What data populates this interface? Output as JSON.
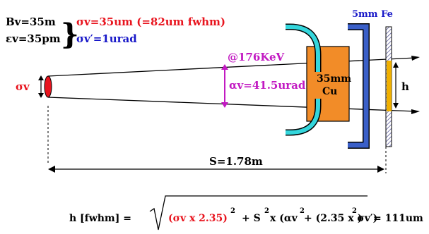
{
  "params": {
    "bv": "Bv=35m",
    "ev": "εv=35pm",
    "sigma_v": "σv=35um (=82um fwhm)",
    "sigma_vp": "σv′=1urad"
  },
  "energy": "@176KeV",
  "source_label": "σv",
  "divergence": "αv=41.5urad",
  "absorber": {
    "label_line1": "35mm",
    "label_line2": "Cu"
  },
  "fe_label": "5mm Fe",
  "h_label": "h",
  "distance": "S=1.78m",
  "formula": {
    "lhs": "h [fwhm]  =",
    "t1": "(σv x 2.35)",
    "t2": "+  S",
    "t3": "x (αv",
    "t4": "+ (2.35 x σv′)",
    "t5": ")",
    "sq": "2",
    "result": "= 111um"
  },
  "colors": {
    "red": "#e8141e",
    "blue": "#1717c8",
    "magenta": "#c21ac2",
    "copper": "#f28c28",
    "cyan": "#34d6dc",
    "steel": "#3a5fc8",
    "gold": "#f0b000"
  }
}
